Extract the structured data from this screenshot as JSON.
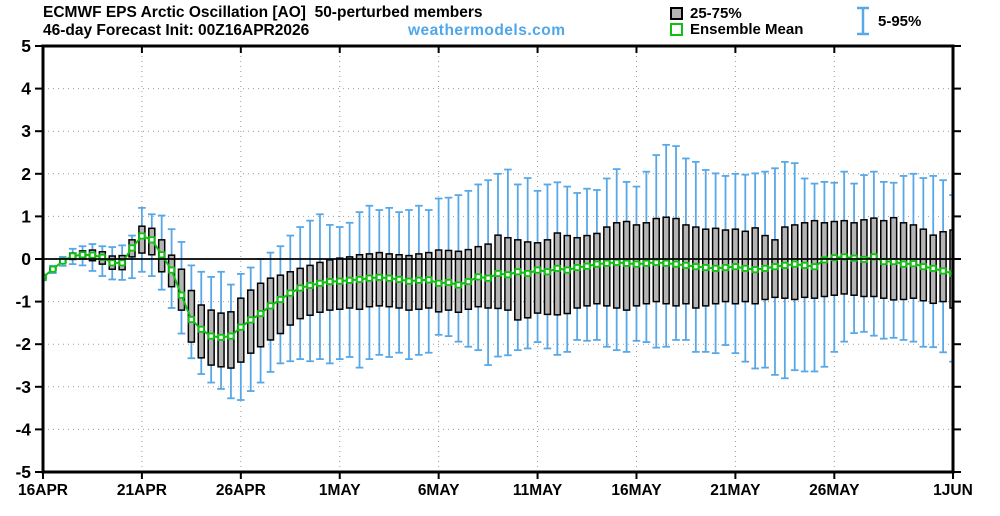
{
  "chart_data": {
    "type": "box-whisker-timeseries",
    "title": "ECMWF EPS Arctic Oscillation [AO]  50-perturbed members",
    "subtitle": "46-day Forecast Init: 00Z16APR2026",
    "watermark": "weathermodels.com",
    "legend": [
      {
        "label": "25-75%",
        "swatch": "gray-box"
      },
      {
        "label": "Ensemble Mean",
        "swatch": "green-square"
      },
      {
        "label": "5-95%",
        "swatch": "blue-whisker"
      }
    ],
    "ylabel": "",
    "xlabel": "",
    "ylim": [
      -5,
      5
    ],
    "y_ticks": [
      -5,
      -4,
      -3,
      -2,
      -1,
      0,
      1,
      2,
      3,
      4,
      5
    ],
    "x_tick_labels": [
      "16APR",
      "21APR",
      "26APR",
      "1MAY",
      "6MAY",
      "11MAY",
      "16MAY",
      "21MAY",
      "26MAY",
      "1JUN"
    ],
    "x_tick_days": [
      0,
      5,
      10,
      15,
      20,
      25,
      30,
      35,
      40,
      46
    ],
    "days_total": 46,
    "time_step_hours": 12,
    "grid": "dotted",
    "colors": {
      "whisker": "#58a8e8",
      "watermark": "#4da7ea",
      "box_fill": "#b4b4b4",
      "box_edge": "#000000",
      "mean": "#10c010",
      "grid": "#999999",
      "axis": "#000000"
    },
    "series": {
      "mean": [
        -0.43,
        -0.24,
        -0.05,
        0.07,
        0.1,
        0.09,
        0.04,
        -0.09,
        -0.09,
        0.26,
        0.54,
        0.45,
        0.1,
        -0.26,
        -0.85,
        -1.42,
        -1.65,
        -1.81,
        -1.84,
        -1.81,
        -1.6,
        -1.43,
        -1.28,
        -1.1,
        -0.95,
        -0.8,
        -0.68,
        -0.62,
        -0.57,
        -0.53,
        -0.52,
        -0.5,
        -0.48,
        -0.45,
        -0.43,
        -0.45,
        -0.48,
        -0.52,
        -0.5,
        -0.49,
        -0.57,
        -0.55,
        -0.61,
        -0.53,
        -0.42,
        -0.45,
        -0.34,
        -0.37,
        -0.3,
        -0.34,
        -0.26,
        -0.3,
        -0.22,
        -0.26,
        -0.2,
        -0.17,
        -0.12,
        -0.1,
        -0.08,
        -0.1,
        -0.12,
        -0.1,
        -0.08,
        -0.1,
        -0.12,
        -0.15,
        -0.18,
        -0.2,
        -0.22,
        -0.2,
        -0.18,
        -0.22,
        -0.25,
        -0.22,
        -0.18,
        -0.15,
        -0.12,
        -0.15,
        -0.18,
        -0.02,
        0.03,
        0.05,
        0.02,
        -0.01,
        0.05,
        -0.06,
        -0.06,
        -0.12,
        -0.11,
        -0.18,
        -0.22,
        -0.28,
        -0.34
      ],
      "p25": [
        -0.46,
        -0.27,
        -0.09,
        -0.01,
        0.0,
        -0.04,
        -0.12,
        -0.24,
        -0.25,
        0.05,
        0.14,
        0.1,
        -0.3,
        -0.65,
        -1.2,
        -1.95,
        -2.32,
        -2.49,
        -2.53,
        -2.56,
        -2.42,
        -2.21,
        -2.06,
        -1.9,
        -1.75,
        -1.55,
        -1.4,
        -1.32,
        -1.25,
        -1.2,
        -1.18,
        -1.15,
        -1.18,
        -1.12,
        -1.1,
        -1.12,
        -1.15,
        -1.2,
        -1.18,
        -1.15,
        -1.24,
        -1.2,
        -1.25,
        -1.18,
        -1.12,
        -1.15,
        -1.16,
        -1.2,
        -1.43,
        -1.38,
        -1.27,
        -1.3,
        -1.31,
        -1.28,
        -1.15,
        -1.1,
        -1.05,
        -1.1,
        -1.15,
        -1.2,
        -1.1,
        -1.05,
        -1.0,
        -1.05,
        -1.1,
        -1.05,
        -1.15,
        -1.1,
        -1.05,
        -1.0,
        -1.05,
        -1.0,
        -1.05,
        -0.95,
        -0.9,
        -0.92,
        -0.95,
        -0.9,
        -0.92,
        -0.88,
        -0.85,
        -0.82,
        -0.85,
        -0.88,
        -0.88,
        -0.92,
        -0.96,
        -0.95,
        -0.92,
        -0.98,
        -1.04,
        -1.0,
        -1.15
      ],
      "p75": [
        -0.41,
        -0.21,
        -0.01,
        0.14,
        0.19,
        0.21,
        0.17,
        0.07,
        0.08,
        0.45,
        0.77,
        0.72,
        0.45,
        0.09,
        -0.24,
        -0.74,
        -1.08,
        -1.2,
        -1.27,
        -1.24,
        -0.92,
        -0.73,
        -0.57,
        -0.45,
        -0.38,
        -0.3,
        -0.22,
        -0.15,
        -0.08,
        -0.02,
        0.02,
        0.05,
        0.1,
        0.12,
        0.15,
        0.12,
        0.1,
        0.08,
        0.12,
        0.15,
        0.21,
        0.2,
        0.18,
        0.22,
        0.29,
        0.35,
        0.56,
        0.5,
        0.45,
        0.4,
        0.38,
        0.45,
        0.61,
        0.55,
        0.5,
        0.55,
        0.6,
        0.75,
        0.85,
        0.88,
        0.8,
        0.85,
        0.95,
        0.98,
        0.95,
        0.8,
        0.75,
        0.7,
        0.72,
        0.68,
        0.7,
        0.65,
        0.73,
        0.55,
        0.45,
        0.75,
        0.8,
        0.85,
        0.9,
        0.85,
        0.88,
        0.9,
        0.85,
        0.92,
        0.96,
        0.9,
        0.97,
        0.85,
        0.8,
        0.7,
        0.56,
        0.64,
        0.68
      ],
      "p5": [
        -0.5,
        -0.33,
        -0.16,
        -0.12,
        -0.15,
        -0.28,
        -0.4,
        -0.48,
        -0.49,
        -0.45,
        -0.3,
        -0.4,
        -0.72,
        -1.15,
        -1.75,
        -2.33,
        -2.7,
        -2.9,
        -3.05,
        -3.27,
        -3.31,
        -3.1,
        -2.9,
        -2.65,
        -2.45,
        -2.4,
        -2.35,
        -2.4,
        -2.35,
        -2.45,
        -2.35,
        -2.3,
        -2.55,
        -2.35,
        -2.25,
        -2.3,
        -2.2,
        -2.35,
        -2.25,
        -2.2,
        -1.78,
        -1.81,
        -1.94,
        -2.06,
        -2.14,
        -2.49,
        -2.29,
        -2.26,
        -2.14,
        -2.1,
        -1.95,
        -2.1,
        -2.25,
        -2.18,
        -1.9,
        -1.92,
        -1.9,
        -2.06,
        -2.14,
        -2.18,
        -1.92,
        -1.95,
        -2.08,
        -2.06,
        -1.9,
        -1.9,
        -2.18,
        -2.18,
        -2.21,
        -2.02,
        -2.21,
        -2.41,
        -2.57,
        -2.55,
        -2.72,
        -2.8,
        -2.61,
        -2.64,
        -2.64,
        -2.53,
        -2.18,
        -1.94,
        -1.74,
        -1.71,
        -1.8,
        -1.87,
        -1.85,
        -1.9,
        -1.94,
        -2.06,
        -2.07,
        -2.19,
        -2.41
      ],
      "p95": [
        -0.37,
        -0.16,
        0.05,
        0.24,
        0.3,
        0.35,
        0.3,
        0.28,
        0.32,
        0.55,
        1.2,
        1.05,
        1.02,
        0.7,
        0.4,
        -0.15,
        -0.3,
        -0.42,
        -0.3,
        -0.6,
        -0.35,
        -0.2,
        0.0,
        0.15,
        0.3,
        0.55,
        0.75,
        0.9,
        1.05,
        0.8,
        0.75,
        0.85,
        1.1,
        1.25,
        1.15,
        1.2,
        1.1,
        1.15,
        1.25,
        1.15,
        1.42,
        1.44,
        1.5,
        1.6,
        1.75,
        1.85,
        2.0,
        2.1,
        1.75,
        1.9,
        1.6,
        1.75,
        1.8,
        1.7,
        1.55,
        1.65,
        1.62,
        1.89,
        2.11,
        1.81,
        1.7,
        2.05,
        2.44,
        2.68,
        2.65,
        2.36,
        2.28,
        2.09,
        2.01,
        1.95,
        2.0,
        1.98,
        2.01,
        2.05,
        2.13,
        2.28,
        2.25,
        1.89,
        1.77,
        1.81,
        1.79,
        2.05,
        1.77,
        1.97,
        2.05,
        1.81,
        1.79,
        1.95,
        2.0,
        1.9,
        1.95,
        1.85,
        1.5
      ]
    }
  }
}
